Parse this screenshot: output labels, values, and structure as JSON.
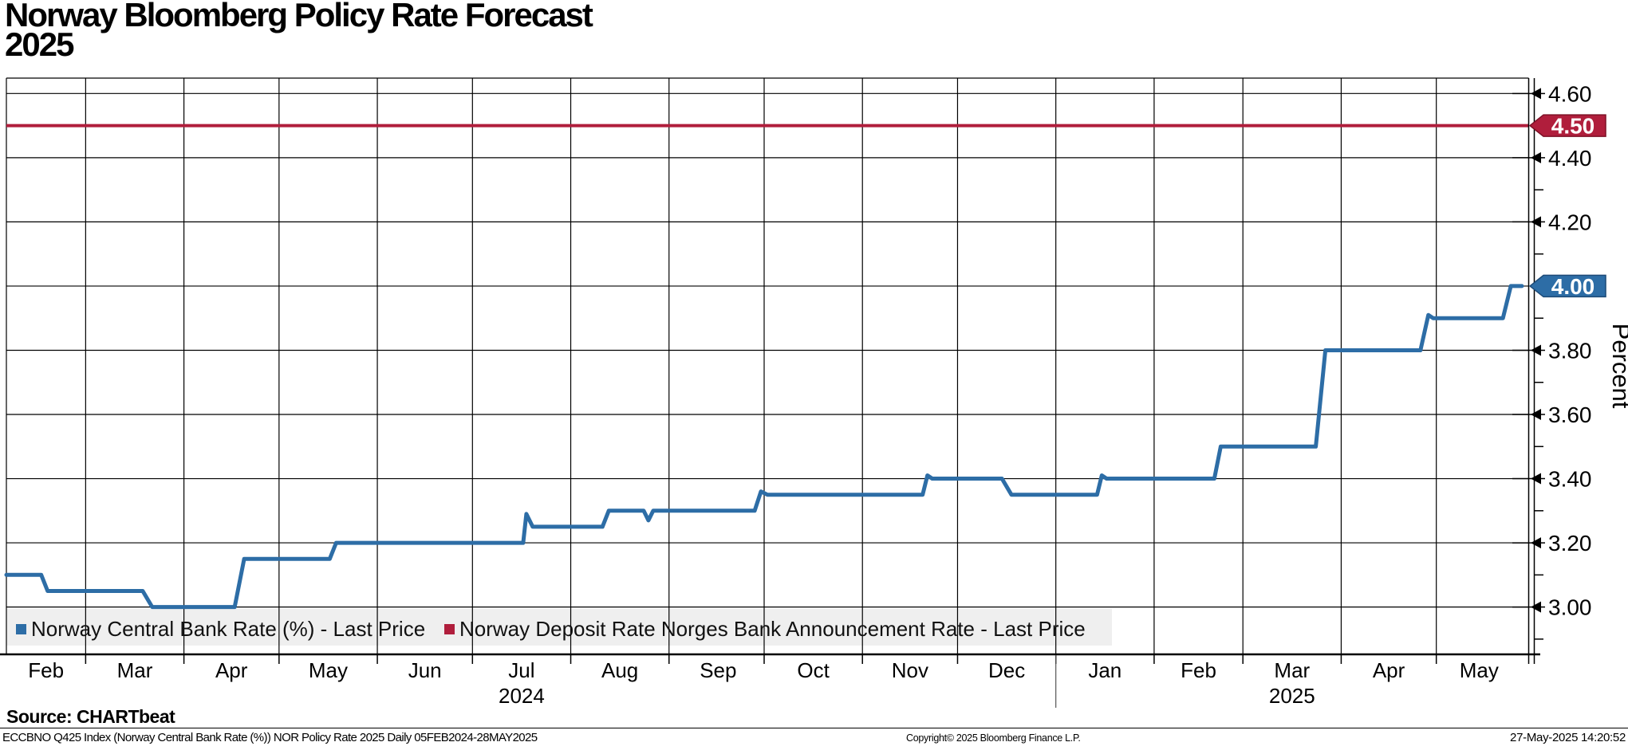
{
  "title": {
    "line1": "Norway Bloomberg Policy Rate Forecast",
    "line2": "2025"
  },
  "legend": {
    "items": [
      {
        "label": "Norway Central Bank Rate (%) - Last Price",
        "color": "#2d6da6"
      },
      {
        "label": "Norway Deposit Rate Norges Bank Announcement Rate - Last Price",
        "color": "#b01e3c"
      }
    ],
    "background": "#efefef"
  },
  "chart_data": {
    "type": "line",
    "title": "Norway Bloomberg Policy Rate Forecast 2025",
    "x_axis": {
      "start_date": "05FEB2024",
      "end_date": "28MAY2025",
      "total_days": 478,
      "month_boundaries_days": [
        25,
        56,
        86,
        117,
        147,
        178,
        209,
        239,
        270,
        300,
        331,
        362,
        390,
        421,
        451
      ],
      "month_labels": [
        {
          "label": "Feb",
          "day": 12.5
        },
        {
          "label": "Mar",
          "day": 40.5
        },
        {
          "label": "Apr",
          "day": 71
        },
        {
          "label": "May",
          "day": 101.5
        },
        {
          "label": "Jun",
          "day": 132
        },
        {
          "label": "Jul",
          "day": 162.5
        },
        {
          "label": "Aug",
          "day": 193.5
        },
        {
          "label": "Sep",
          "day": 224.5
        },
        {
          "label": "Oct",
          "day": 254.5
        },
        {
          "label": "Nov",
          "day": 285
        },
        {
          "label": "Dec",
          "day": 315.5
        },
        {
          "label": "Jan",
          "day": 346.5
        },
        {
          "label": "Feb",
          "day": 376
        },
        {
          "label": "Mar",
          "day": 405.5
        },
        {
          "label": "Apr",
          "day": 436
        },
        {
          "label": "May",
          "day": 464.5
        }
      ],
      "year_labels": [
        {
          "label": "2024",
          "day": 162.5
        },
        {
          "label": "2025",
          "day": 405.5
        }
      ],
      "year_separator_day": 331,
      "grid": true
    },
    "y_axis": {
      "title": "Percent",
      "min": 2.855,
      "max": 4.648,
      "major_ticks": [
        {
          "value": 3.0,
          "label": "3.00"
        },
        {
          "value": 3.2,
          "label": "3.20"
        },
        {
          "value": 3.4,
          "label": "3.40"
        },
        {
          "value": 3.6,
          "label": "3.60"
        },
        {
          "value": 3.8,
          "label": "3.80"
        },
        {
          "value": 4.0,
          "label": "4.00"
        },
        {
          "value": 4.2,
          "label": "4.20"
        },
        {
          "value": 4.4,
          "label": "4.40"
        },
        {
          "value": 4.6,
          "label": "4.60"
        }
      ],
      "minor_ticks": [
        2.9,
        3.1,
        3.3,
        3.5,
        3.7,
        3.9,
        4.1,
        4.3
      ],
      "badges": [
        {
          "value": 4.5,
          "label": "4.50",
          "color": "#b01e3c",
          "border": "#7d1026"
        },
        {
          "value": 4.0,
          "label": "4.00",
          "color": "#2d6da6",
          "border": "#1c4a77"
        }
      ],
      "grid": true,
      "position": "right"
    },
    "series": [
      {
        "name": "Norway Central Bank Rate (%) - Last Price",
        "color": "#2d6da6",
        "type": "step-line",
        "points_format": "[days_since_05FEB2024, percent]",
        "points": [
          [
            0,
            3.1
          ],
          [
            11,
            3.1
          ],
          [
            13,
            3.05
          ],
          [
            43,
            3.05
          ],
          [
            46,
            3.0
          ],
          [
            72,
            3.0
          ],
          [
            75,
            3.15
          ],
          [
            102,
            3.15
          ],
          [
            104,
            3.2
          ],
          [
            163,
            3.2
          ],
          [
            164,
            3.29
          ],
          [
            166,
            3.25
          ],
          [
            188,
            3.25
          ],
          [
            190,
            3.3
          ],
          [
            201,
            3.3
          ],
          [
            202.5,
            3.27
          ],
          [
            204,
            3.3
          ],
          [
            236,
            3.3
          ],
          [
            238,
            3.36
          ],
          [
            240,
            3.35
          ],
          [
            289,
            3.35
          ],
          [
            290.5,
            3.41
          ],
          [
            292,
            3.4
          ],
          [
            314,
            3.4
          ],
          [
            317,
            3.35
          ],
          [
            344,
            3.35
          ],
          [
            345.5,
            3.41
          ],
          [
            347,
            3.4
          ],
          [
            381,
            3.4
          ],
          [
            383,
            3.5
          ],
          [
            413,
            3.5
          ],
          [
            416,
            3.8
          ],
          [
            446,
            3.8
          ],
          [
            448.5,
            3.91
          ],
          [
            450,
            3.9
          ],
          [
            472,
            3.9
          ],
          [
            474.5,
            4.0
          ],
          [
            478,
            4.0
          ]
        ],
        "last_value": 4.0
      },
      {
        "name": "Norway Deposit Rate Norges Bank Announcement Rate - Last Price",
        "color": "#b01e3c",
        "type": "constant",
        "value": 4.5
      }
    ]
  },
  "footer": {
    "source": "Source: CHARTbeat",
    "description": "ECCBNO Q425 Index (Norway Central Bank Rate (%)) NOR Policy Rate 2025  Daily 05FEB2024-28MAY2025",
    "copyright": "Copyright© 2025 Bloomberg Finance L.P.",
    "timestamp": "27-May-2025 14:20:52"
  }
}
